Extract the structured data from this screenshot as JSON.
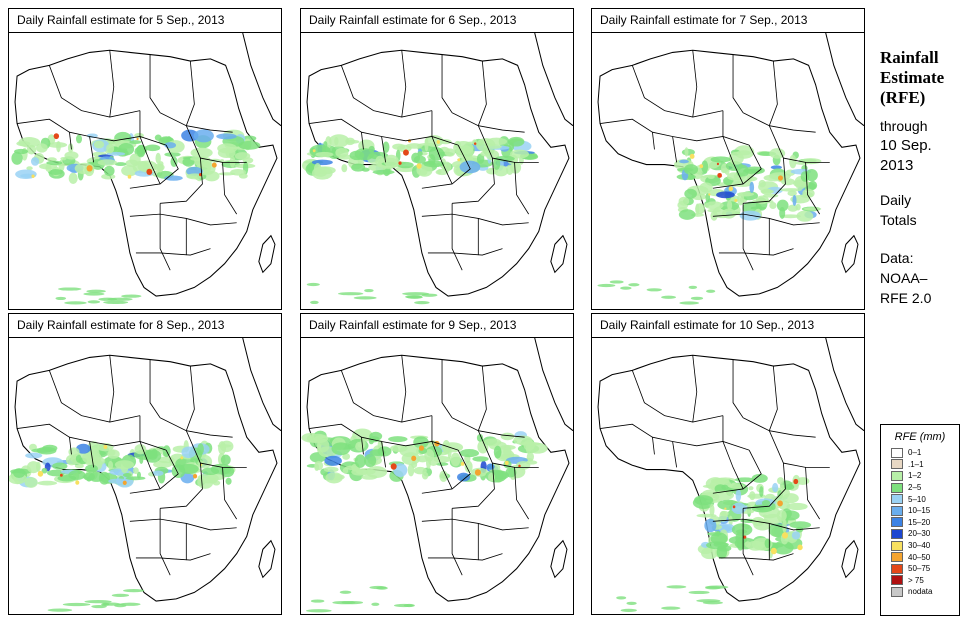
{
  "panels": [
    {
      "title": "Daily Rainfall estimate for  5 Sep., 2013"
    },
    {
      "title": "Daily Rainfall estimate for  6 Sep., 2013"
    },
    {
      "title": "Daily Rainfall estimate for  7 Sep., 2013"
    },
    {
      "title": "Daily Rainfall estimate for  8 Sep., 2013"
    },
    {
      "title": "Daily Rainfall estimate for  9 Sep., 2013"
    },
    {
      "title": "Daily Rainfall estimate for  10 Sep., 2013"
    }
  ],
  "sidebar": {
    "title_line1": "Rainfall",
    "title_line2": "Estimate",
    "title_line3": "(RFE)",
    "through": "through",
    "date_line1": "10 Sep.",
    "date_line2": "2013",
    "daily": "Daily",
    "totals": "Totals",
    "data_label": "Data:",
    "source_line1": "NOAA–",
    "source_line2": "RFE 2.0"
  },
  "legend": {
    "title": "RFE (mm)",
    "items": [
      {
        "label": "0–1",
        "color": "#ffffff"
      },
      {
        "label": ".1–1",
        "color": "#e8d8c4"
      },
      {
        "label": "1–2",
        "color": "#b8f0a8"
      },
      {
        "label": "2–5",
        "color": "#7ee07e"
      },
      {
        "label": "5–10",
        "color": "#9ad2f4"
      },
      {
        "label": "10–15",
        "color": "#6aaeee"
      },
      {
        "label": "15–20",
        "color": "#3c82e4"
      },
      {
        "label": "20–30",
        "color": "#1c46d0"
      },
      {
        "label": "30–40",
        "color": "#f8e060"
      },
      {
        "label": "40–50",
        "color": "#f4a430"
      },
      {
        "label": "50–75",
        "color": "#e44818"
      },
      {
        "label": "> 75",
        "color": "#b01010"
      },
      {
        "label": "nodata",
        "color": "#c8c8c8"
      }
    ]
  }
}
